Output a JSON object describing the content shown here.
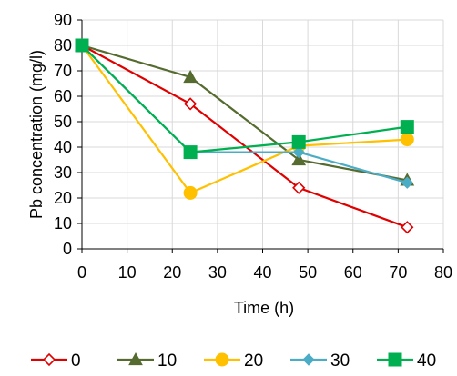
{
  "chart_data": {
    "type": "line",
    "title": "",
    "xlabel": "Time (h)",
    "ylabel": "Pb concentration (mg/l)",
    "xlim": [
      0,
      80
    ],
    "ylim": [
      0,
      90
    ],
    "x_ticks": [
      0,
      10,
      20,
      30,
      40,
      50,
      60,
      70,
      80
    ],
    "y_ticks": [
      0,
      10,
      20,
      30,
      40,
      50,
      60,
      70,
      80,
      90
    ],
    "grid": true,
    "legend_position": "bottom",
    "series": [
      {
        "name": "0",
        "color": "#e00000",
        "marker": "diamond-open",
        "x": [
          0,
          24,
          48,
          72
        ],
        "y": [
          80,
          57,
          24,
          8.5
        ]
      },
      {
        "name": "10",
        "color": "#556b2f",
        "marker": "triangle",
        "x": [
          0,
          24,
          48,
          72
        ],
        "y": [
          80,
          67.5,
          35,
          27
        ]
      },
      {
        "name": "20",
        "color": "#ffc000",
        "marker": "circle",
        "x": [
          0,
          24,
          48,
          72
        ],
        "y": [
          80,
          22,
          40.5,
          43
        ]
      },
      {
        "name": "30",
        "color": "#4bacc6",
        "marker": "diamond",
        "x": [
          0,
          24,
          48,
          72
        ],
        "y": [
          80,
          38,
          38,
          26
        ]
      },
      {
        "name": "40",
        "color": "#00b050",
        "marker": "square",
        "x": [
          0,
          24,
          48,
          72
        ],
        "y": [
          80,
          38,
          42,
          48
        ]
      }
    ]
  }
}
